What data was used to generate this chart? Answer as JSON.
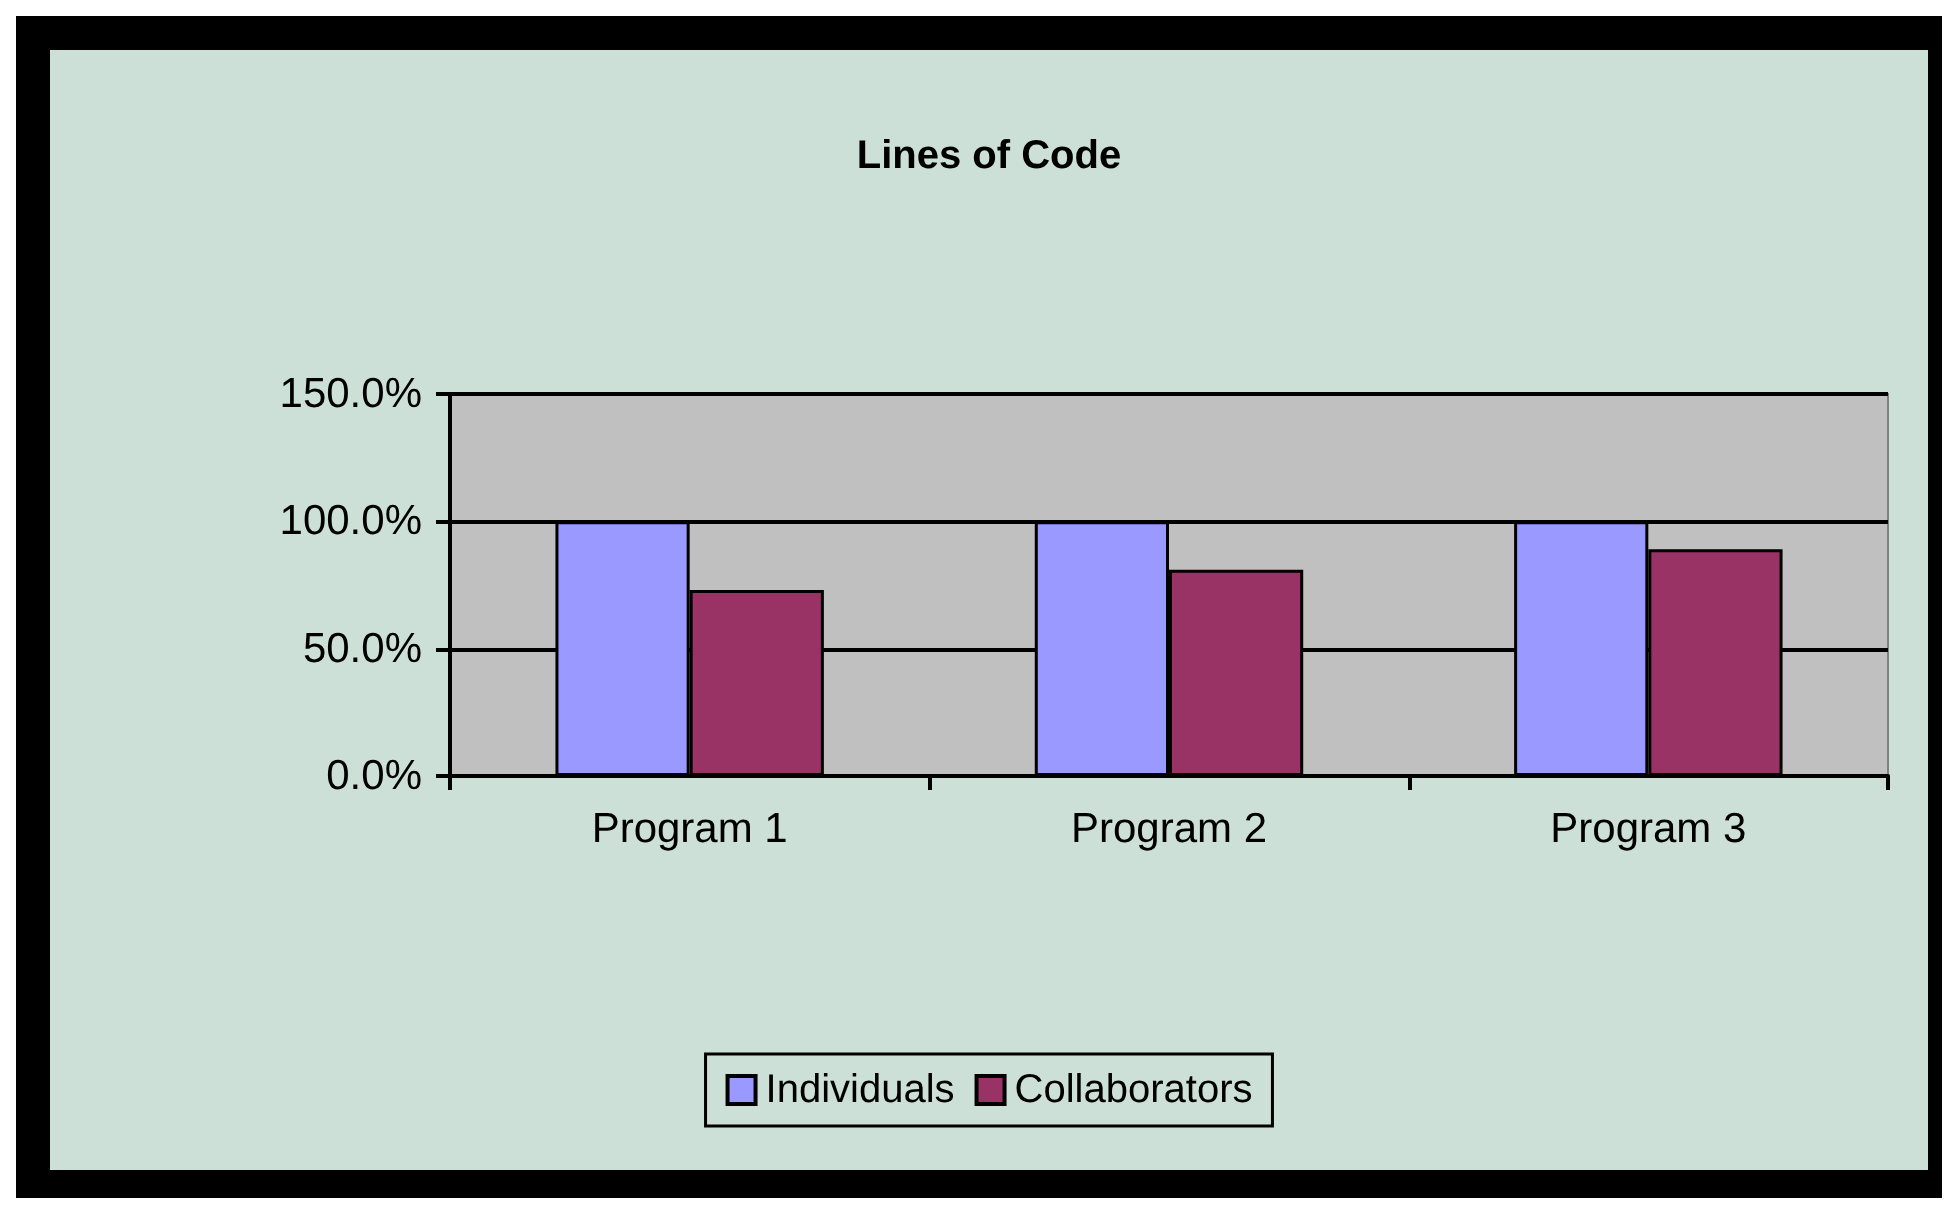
{
  "chart_data": {
    "type": "bar",
    "title": "Lines of Code",
    "categories": [
      "Program 1",
      "Program 2",
      "Program 3"
    ],
    "series": [
      {
        "name": "Individuals",
        "color": "#9999ff",
        "values": [
          100,
          100,
          100
        ]
      },
      {
        "name": "Collaborators",
        "color": "#993366",
        "values": [
          73,
          81,
          89
        ]
      }
    ],
    "ylim": [
      0,
      150
    ],
    "yticks": [
      {
        "value": 0,
        "label": "0.0%"
      },
      {
        "value": 50,
        "label": "50.0%"
      },
      {
        "value": 100,
        "label": "100.0%"
      },
      {
        "value": 150,
        "label": "150.0%"
      }
    ],
    "grid": "y",
    "legend": "bottom"
  }
}
